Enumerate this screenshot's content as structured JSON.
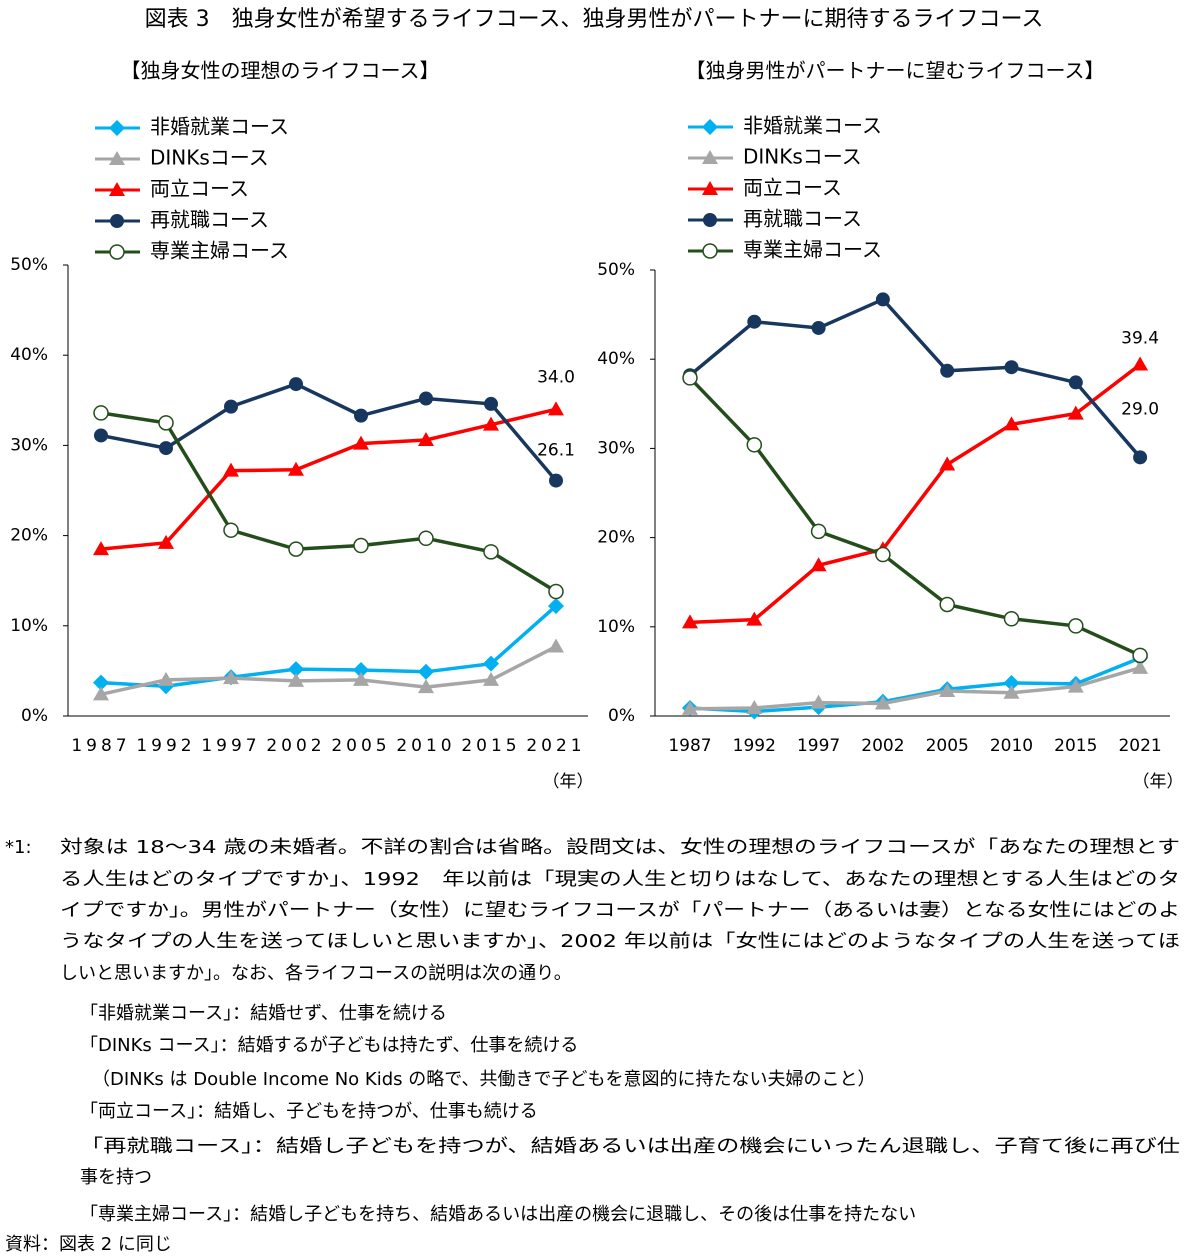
{
  "title": "図表 3　独身女性が希望するライフコース、独身男性がパートナーに期待するライフコース",
  "chart_data": [
    {
      "type": "line",
      "subtitle": "【独身女性の理想のライフコース】",
      "categories": [
        "1987",
        "1992",
        "1997",
        "2002",
        "2005",
        "2010",
        "2015",
        "2021"
      ],
      "x_unit": "（年）",
      "ylim": [
        0,
        50
      ],
      "yticks": [
        {
          "value": 0,
          "label": "0%"
        },
        {
          "value": 10,
          "label": "10%"
        },
        {
          "value": 20,
          "label": "20%"
        },
        {
          "value": 30,
          "label": "30%"
        },
        {
          "value": 40,
          "label": "40%"
        },
        {
          "value": 50,
          "label": "50%"
        }
      ],
      "series": [
        {
          "name": "非婚就業コース",
          "color": "#00b0f0",
          "marker": "diamond",
          "values": [
            3.7,
            3.3,
            4.3,
            5.2,
            5.1,
            4.9,
            5.8,
            12.2
          ]
        },
        {
          "name": "DINKsコース",
          "color": "#a6a6a6",
          "marker": "triangle",
          "values": [
            2.4,
            4.0,
            4.2,
            3.9,
            4.0,
            3.2,
            4.0,
            7.7
          ]
        },
        {
          "name": "両立コース",
          "color": "#ff0000",
          "marker": "triangle",
          "values": [
            18.5,
            19.2,
            27.2,
            27.3,
            30.2,
            30.6,
            32.3,
            34.0
          ],
          "value_labels": [
            null,
            null,
            null,
            null,
            null,
            null,
            null,
            "34.0"
          ]
        },
        {
          "name": "再就職コース",
          "color": "#17375e",
          "marker": "circle",
          "values": [
            31.1,
            29.7,
            34.3,
            36.8,
            33.3,
            35.2,
            34.6,
            26.1
          ],
          "value_labels": [
            null,
            null,
            null,
            null,
            null,
            null,
            null,
            "26.1"
          ]
        },
        {
          "name": "専業主婦コース",
          "color": "#244d1c",
          "marker": "open-circle",
          "values": [
            33.6,
            32.5,
            20.6,
            18.5,
            18.9,
            19.7,
            18.2,
            13.8
          ]
        }
      ]
    },
    {
      "type": "line",
      "subtitle": "【独身男性がパートナーに望むライフコース】",
      "categories": [
        "1987",
        "1992",
        "1997",
        "2002",
        "2005",
        "2010",
        "2015",
        "2021"
      ],
      "x_unit": "（年）",
      "ylim": [
        0,
        50
      ],
      "yticks": [
        {
          "value": 0,
          "label": "0%"
        },
        {
          "value": 10,
          "label": "10%"
        },
        {
          "value": 20,
          "label": "20%"
        },
        {
          "value": 30,
          "label": "30%"
        },
        {
          "value": 40,
          "label": "40%"
        },
        {
          "value": 50,
          "label": "50%"
        }
      ],
      "series": [
        {
          "name": "非婚就業コース",
          "color": "#00b0f0",
          "marker": "diamond",
          "values": [
            0.9,
            0.5,
            1.0,
            1.6,
            3.0,
            3.7,
            3.6,
            6.5
          ]
        },
        {
          "name": "DINKsコース",
          "color": "#a6a6a6",
          "marker": "triangle",
          "values": [
            0.8,
            0.9,
            1.5,
            1.4,
            2.8,
            2.6,
            3.3,
            5.4
          ]
        },
        {
          "name": "両立コース",
          "color": "#ff0000",
          "marker": "triangle",
          "values": [
            10.5,
            10.8,
            16.9,
            18.7,
            28.2,
            32.7,
            33.9,
            39.4
          ],
          "value_labels": [
            null,
            null,
            null,
            null,
            null,
            null,
            null,
            "39.4"
          ]
        },
        {
          "name": "再就職コース",
          "color": "#17375e",
          "marker": "circle",
          "values": [
            38.2,
            44.2,
            43.5,
            46.7,
            38.7,
            39.1,
            37.4,
            29.0
          ],
          "value_labels": [
            null,
            null,
            null,
            null,
            null,
            null,
            null,
            "29.0"
          ]
        },
        {
          "name": "専業主婦コース",
          "color": "#244d1c",
          "marker": "open-circle",
          "values": [
            37.9,
            30.4,
            20.7,
            18.1,
            12.5,
            10.9,
            10.1,
            6.8
          ]
        }
      ]
    }
  ],
  "notes": {
    "label": "*1:",
    "lines": [
      "対象は 18～34 歳の未婚者。不詳の割合は省略。設問文は、女性の理想のライフコースが「あなたの理想とす",
      "る人生はどのタイプですか」、1992　年以前は「現実の人生と切りはなして、あなたの理想とする人生はどのタ",
      "イプですか」。男性がパートナー（女性）に望むライフコースが「パートナー（あるいは妻）となる女性にはどのよ",
      "うなタイプの人生を送ってほしいと思いますか」、2002 年以前は「女性にはどのようなタイプの人生を送ってほ",
      "しいと思いますか」。なお、各ライフコースの説明は次の通り。",
      "「非婚就業コース」：結婚せず、仕事を続ける",
      "「DINKs コース」：結婚するが子どもは持たず、仕事を続ける",
      "（DINKs は Double Income No Kids の略で、共働きで子どもを意図的に持たない夫婦のこと）",
      "「両立コース」：結婚し、子どもを持つが、仕事も続ける",
      "「再就職コース」：結婚し子どもを持つが、結婚あるいは出産の機会にいったん退職し、子育て後に再び仕",
      "事を持つ",
      "「専業主婦コース」：結婚し子どもを持ち、結婚あるいは出産の機会に退職し、その後は仕事を持たない"
    ],
    "source": "資料：図表 2 に同じ"
  }
}
